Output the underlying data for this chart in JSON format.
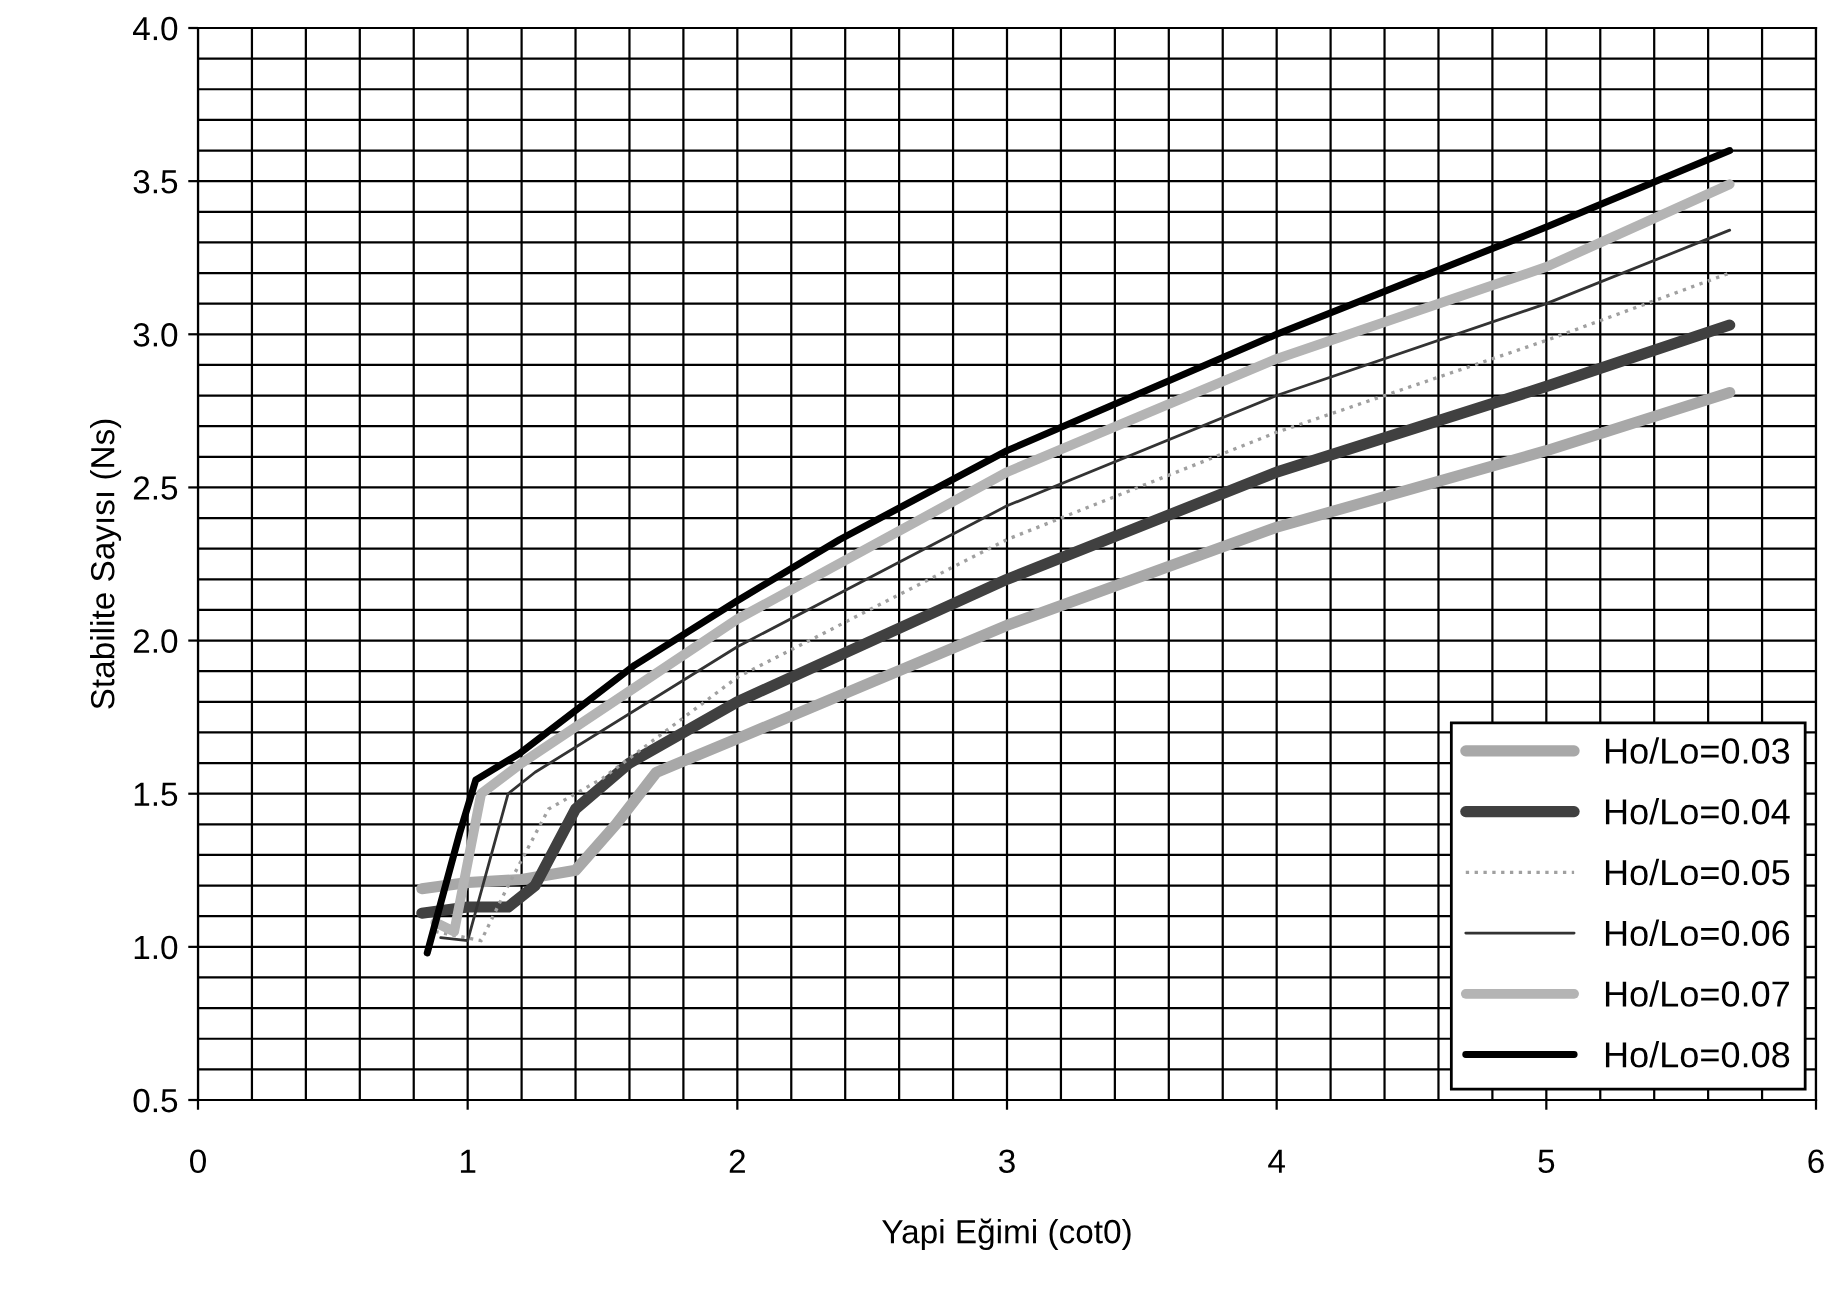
{
  "chart_data": {
    "type": "line",
    "xlabel": "Yapi Eğimi (cot0)",
    "ylabel": "Stabilite Sayısı (Ns)",
    "xlim": [
      0,
      6
    ],
    "xticks": [
      0,
      1,
      2,
      3,
      4,
      5,
      6
    ],
    "ylim": [
      0.5,
      4.0
    ],
    "yticks": [
      {
        "value": 0.5,
        "label": "0.5"
      },
      {
        "value": 1.0,
        "label": "1.0"
      },
      {
        "value": 1.5,
        "label": "1.5"
      },
      {
        "value": 2.0,
        "label": "2.0"
      },
      {
        "value": 2.5,
        "label": "2.5"
      },
      {
        "value": 3.0,
        "label": "3.0"
      },
      {
        "value": 3.5,
        "label": "3.5"
      },
      {
        "value": 4.0,
        "label": "4.0"
      }
    ],
    "grid": true,
    "legend": "bottom right",
    "marker": "none",
    "series": [
      {
        "name": "Ho/Lo=0.03",
        "color": "#a8a8a8",
        "line_style": "solid",
        "x": [
          0.83,
          1.0,
          1.2,
          1.4,
          1.55,
          1.7,
          2,
          3,
          4,
          5,
          5.68
        ],
        "values": [
          1.19,
          1.21,
          1.22,
          1.25,
          1.4,
          1.57,
          1.68,
          2.05,
          2.37,
          2.62,
          2.81
        ]
      },
      {
        "name": "Ho/Lo=0.04",
        "color": "#404040",
        "line_style": "solid",
        "x": [
          0.83,
          1.0,
          1.15,
          1.25,
          1.4,
          1.6,
          2,
          3,
          4,
          5,
          5.68
        ],
        "values": [
          1.11,
          1.13,
          1.13,
          1.2,
          1.45,
          1.6,
          1.8,
          2.2,
          2.55,
          2.83,
          3.03
        ]
      },
      {
        "name": "Ho/Lo=0.05",
        "color": "#a0a0a0",
        "line_style": "dotted",
        "x": [
          0.88,
          1.05,
          1.15,
          1.3,
          1.5,
          2,
          3,
          4,
          5,
          5.68
        ],
        "values": [
          1.05,
          1.02,
          1.2,
          1.45,
          1.55,
          1.88,
          2.33,
          2.68,
          2.98,
          3.2
        ]
      },
      {
        "name": "Ho/Lo=0.06",
        "color": "#333333",
        "line_style": "solid",
        "x": [
          0.9,
          1.0,
          1.15,
          1.25,
          2,
          3,
          4,
          5,
          5.68
        ],
        "values": [
          1.03,
          1.02,
          1.5,
          1.57,
          1.98,
          2.44,
          2.8,
          3.1,
          3.34
        ]
      },
      {
        "name": "Ho/Lo=0.07",
        "color": "#b4b4b4",
        "line_style": "solid",
        "x": [
          0.88,
          0.95,
          1.05,
          1.2,
          2,
          3,
          4,
          5,
          5.68
        ],
        "values": [
          1.08,
          1.05,
          1.5,
          1.6,
          2.07,
          2.55,
          2.92,
          3.22,
          3.49
        ]
      },
      {
        "name": "Ho/Lo=0.08",
        "color": "#000000",
        "line_style": "solid",
        "x": [
          0.85,
          0.97,
          1.03,
          1.19,
          1.62,
          2,
          2.38,
          3,
          4,
          5,
          5.68
        ],
        "values": [
          0.98,
          1.37,
          1.545,
          1.63,
          1.92,
          2.13,
          2.33,
          2.62,
          3.0,
          3.35,
          3.6
        ]
      }
    ]
  }
}
